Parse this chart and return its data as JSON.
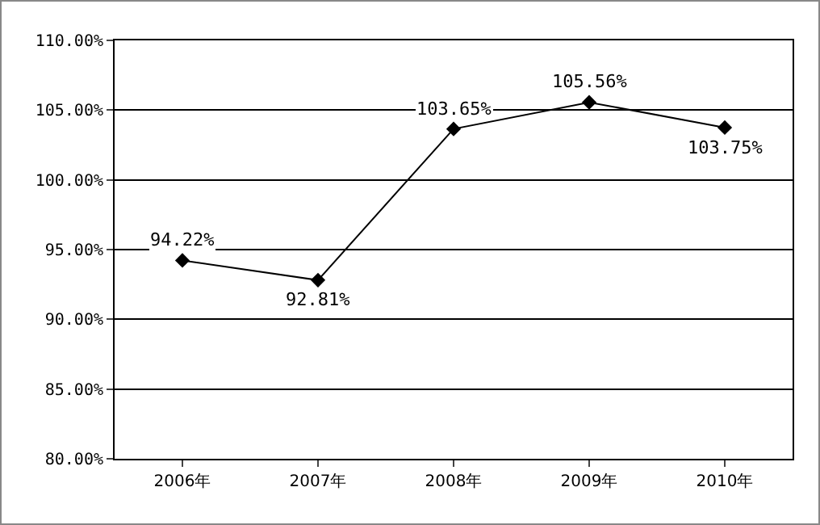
{
  "chart_data": {
    "type": "line",
    "categories": [
      "2006年",
      "2007年",
      "2008年",
      "2009年",
      "2010年"
    ],
    "series": [
      {
        "color": "#000000",
        "values": [
          94.22,
          92.81,
          103.65,
          105.56,
          103.75
        ],
        "value_labels": [
          "94.22%",
          "92.81%",
          "103.65%",
          "105.56%",
          "103.75%"
        ]
      }
    ],
    "ylim": [
      80,
      110
    ],
    "yticks": [
      {
        "value": 80,
        "label": "80.00%"
      },
      {
        "value": 85,
        "label": "85.00%"
      },
      {
        "value": 90,
        "label": "90.00%"
      },
      {
        "value": 95,
        "label": "95.00%"
      },
      {
        "value": 100,
        "label": "100.00%"
      },
      {
        "value": 105,
        "label": "105.00%"
      },
      {
        "value": 110,
        "label": "110.00%"
      }
    ],
    "grid": "y",
    "marker": "diamond",
    "line_style": "solid",
    "legend": false
  }
}
